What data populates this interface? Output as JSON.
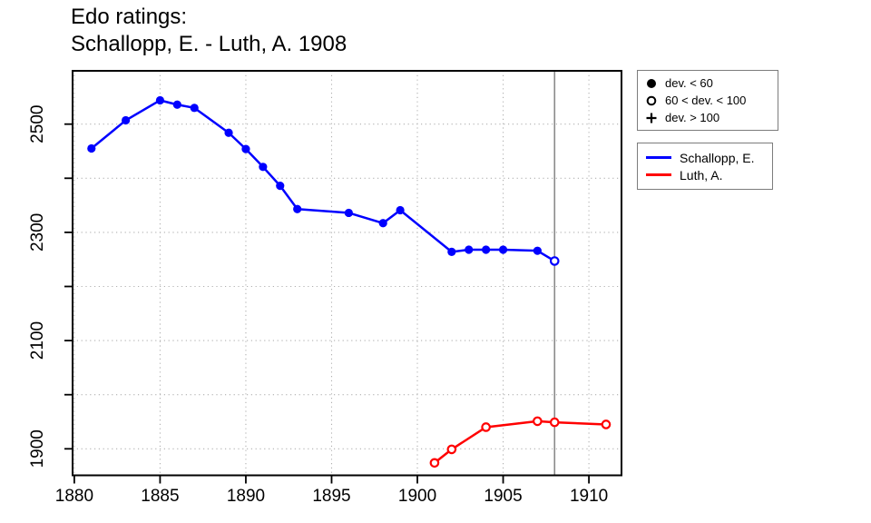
{
  "chart_data": {
    "type": "line",
    "title": "Edo ratings:",
    "subtitle": "Schallopp, E. - Luth, A. 1908",
    "xlim": [
      1879.9,
      1911.9
    ],
    "ylim": [
      1851,
      2598.5
    ],
    "xticks": [
      1880,
      1885,
      1890,
      1895,
      1900,
      1905,
      1910
    ],
    "yticks_minor": [
      1900,
      2000,
      2100,
      2200,
      2300,
      2400,
      2500
    ],
    "yticks_labeled": [
      1900,
      2100,
      2300,
      2500
    ],
    "grid": "dotted gridlines at every tick, light gray",
    "legend_position": "outside top-right",
    "event_line": {
      "year": 1908,
      "color": "#8a8a8a"
    },
    "axis_color": "#000000",
    "grid_color": "#b0b0b0",
    "series": [
      {
        "name": "Schallopp, E.",
        "color": "#0000ff",
        "points": [
          {
            "year": 1881,
            "rating": 2455,
            "marker": "filled"
          },
          {
            "year": 1883,
            "rating": 2507,
            "marker": "filled"
          },
          {
            "year": 1885,
            "rating": 2544,
            "marker": "filled"
          },
          {
            "year": 1886,
            "rating": 2536,
            "marker": "filled"
          },
          {
            "year": 1887,
            "rating": 2530,
            "marker": "filled"
          },
          {
            "year": 1889,
            "rating": 2484,
            "marker": "filled"
          },
          {
            "year": 1890,
            "rating": 2454,
            "marker": "filled"
          },
          {
            "year": 1891,
            "rating": 2421,
            "marker": "filled"
          },
          {
            "year": 1892,
            "rating": 2386,
            "marker": "filled"
          },
          {
            "year": 1893,
            "rating": 2343,
            "marker": "filled"
          },
          {
            "year": 1896,
            "rating": 2336,
            "marker": "filled"
          },
          {
            "year": 1898,
            "rating": 2317,
            "marker": "filled"
          },
          {
            "year": 1899,
            "rating": 2341,
            "marker": "filled"
          },
          {
            "year": 1902,
            "rating": 2264,
            "marker": "filled"
          },
          {
            "year": 1903,
            "rating": 2268,
            "marker": "filled"
          },
          {
            "year": 1904,
            "rating": 2268,
            "marker": "filled"
          },
          {
            "year": 1905,
            "rating": 2268,
            "marker": "filled"
          },
          {
            "year": 1907,
            "rating": 2266,
            "marker": "filled"
          },
          {
            "year": 1908,
            "rating": 2247,
            "marker": "open"
          }
        ]
      },
      {
        "name": "Luth, A.",
        "color": "#ff0000",
        "points": [
          {
            "year": 1901,
            "rating": 1874,
            "marker": "open"
          },
          {
            "year": 1902,
            "rating": 1899,
            "marker": "open"
          },
          {
            "year": 1904,
            "rating": 1940,
            "marker": "open"
          },
          {
            "year": 1907,
            "rating": 1951,
            "marker": "open"
          },
          {
            "year": 1908,
            "rating": 1949,
            "marker": "open"
          },
          {
            "year": 1911,
            "rating": 1945,
            "marker": "open"
          }
        ]
      }
    ],
    "marker_legend": [
      {
        "symbol": "filled-circle",
        "label": "dev. < 60"
      },
      {
        "symbol": "open-circle",
        "label": "60 < dev. < 100"
      },
      {
        "symbol": "plus",
        "label": "dev. > 100"
      }
    ]
  }
}
